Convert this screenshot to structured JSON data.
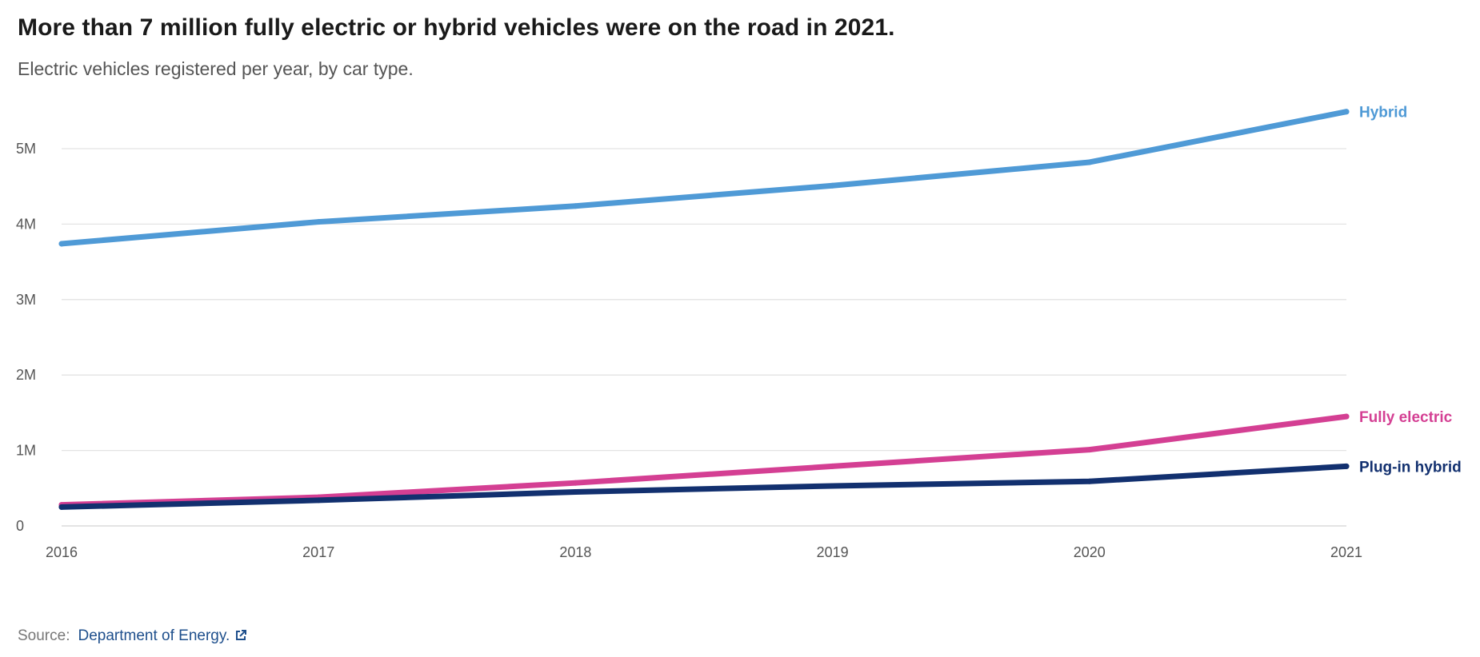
{
  "title": "More than 7 million fully electric or hybrid vehicles were on the road in 2021.",
  "subtitle": "Electric vehicles registered per year, by car type.",
  "source": {
    "prefix": "Source:",
    "link_text": "Department of Energy.",
    "icon": "external-link-icon"
  },
  "chart_data": {
    "type": "line",
    "x": [
      2016,
      2017,
      2018,
      2019,
      2020,
      2021
    ],
    "x_tick_labels": [
      "2016",
      "2017",
      "2018",
      "2019",
      "2020",
      "2021"
    ],
    "y_ticks": [
      0,
      1000000,
      2000000,
      3000000,
      4000000,
      5000000
    ],
    "y_tick_labels": [
      "0",
      "1M",
      "2M",
      "3M",
      "4M",
      "5M"
    ],
    "ylim": [
      0,
      5000000
    ],
    "grid": true,
    "legend": "inline labels at line ends",
    "series": [
      {
        "name": "Hybrid",
        "color": "#4f9ad6",
        "values": [
          3740000,
          4030000,
          4240000,
          4510000,
          4820000,
          5490000
        ]
      },
      {
        "name": "Fully electric",
        "color": "#d43f93",
        "values": [
          280000,
          380000,
          570000,
          790000,
          1010000,
          1450000
        ]
      },
      {
        "name": "Plug-in hybrid",
        "color": "#12306f",
        "values": [
          250000,
          340000,
          450000,
          530000,
          590000,
          790000
        ]
      }
    ]
  }
}
